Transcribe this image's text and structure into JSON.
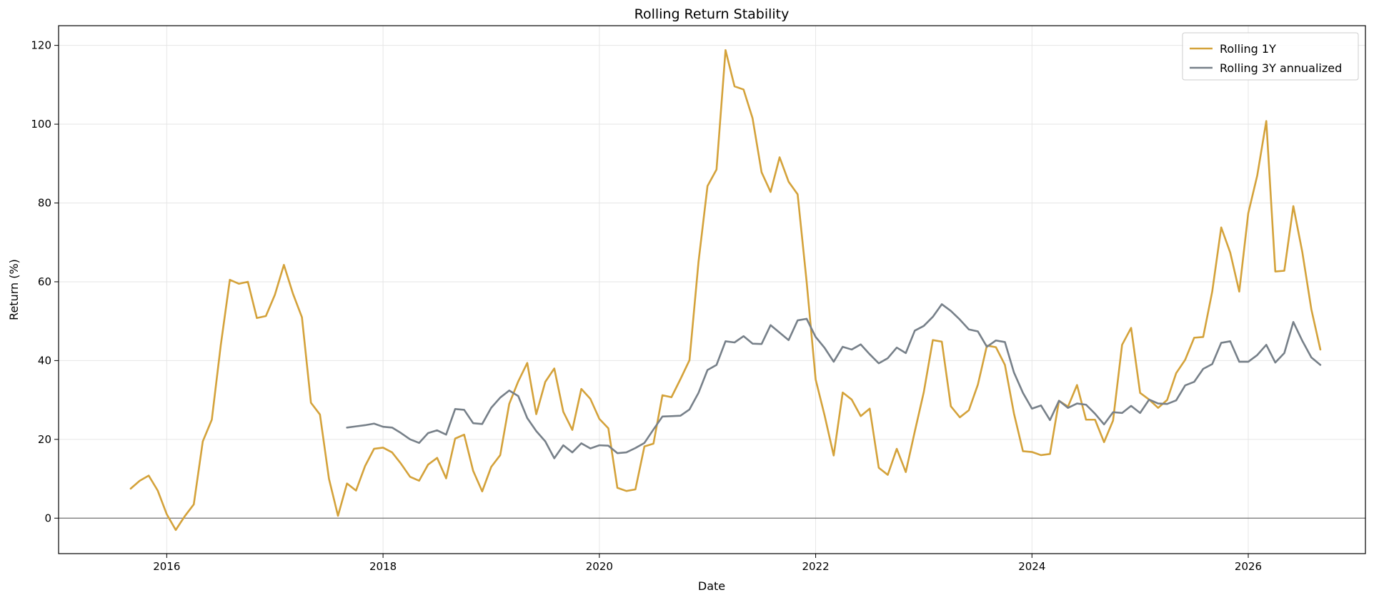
{
  "chart_data": {
    "type": "line",
    "title": "Rolling Return Stability",
    "xlabel": "Date",
    "ylabel": "Return (%)",
    "xlim": [
      "2015-01",
      "2027-02"
    ],
    "ylim": [
      -9,
      125
    ],
    "xticks": [
      "2016",
      "2018",
      "2020",
      "2022",
      "2024",
      "2026"
    ],
    "yticks": [
      0,
      20,
      40,
      60,
      80,
      100,
      120
    ],
    "grid": true,
    "reference_line_y": 0,
    "legend_position": "top-right",
    "series": [
      {
        "name": "Rolling 1Y",
        "color": "#d4a23a",
        "start": "2015-09",
        "values": [
          7.5,
          9.5,
          10.8,
          7.0,
          1.0,
          -3.0,
          0.5,
          3.5,
          19.5,
          25.0,
          44.0,
          60.5,
          59.5,
          60.0,
          50.8,
          51.3,
          56.7,
          64.3,
          57.0,
          51.0,
          29.3,
          26.3,
          10.0,
          0.6,
          8.8,
          7.0,
          13.2,
          17.6,
          17.9,
          16.7,
          13.8,
          10.5,
          9.5,
          13.6,
          15.3,
          10.1,
          20.2,
          21.2,
          12.0,
          6.8,
          13.0,
          16.0,
          29.0,
          34.7,
          39.4,
          26.4,
          34.6,
          38.0,
          27.0,
          22.4,
          32.8,
          30.3,
          25.2,
          22.8,
          7.7,
          6.9,
          7.3,
          18.2,
          18.9,
          31.2,
          30.7,
          35.3,
          40.1,
          65.0,
          84.3,
          88.5,
          118.8,
          109.6,
          108.8,
          101.5,
          87.8,
          82.8,
          91.6,
          85.4,
          82.2,
          60.0,
          35.2,
          26.0,
          15.9,
          31.9,
          30.1,
          25.9,
          27.8,
          12.8,
          11.0,
          17.6,
          11.7,
          22.0,
          32.0,
          45.2,
          44.8,
          28.4,
          25.6,
          27.4,
          33.9,
          43.8,
          43.4,
          38.9,
          26.6,
          17.0,
          16.8,
          16.0,
          16.3,
          29.8,
          28.3,
          33.8,
          25.0,
          25.0,
          19.3,
          24.8,
          44.0,
          48.3,
          31.8,
          30.1,
          28.0,
          30.0,
          36.8,
          40.2,
          45.8,
          46.0,
          57.5,
          73.8,
          67.4,
          57.5,
          77.4,
          87.0,
          100.8,
          62.6,
          62.8,
          79.2,
          67.5,
          53.0,
          42.8
        ]
      },
      {
        "name": "Rolling 3Y annualized",
        "color": "#778089",
        "start": "2017-09",
        "values": [
          23.0,
          23.3,
          23.6,
          24.0,
          23.2,
          23.0,
          21.6,
          20.0,
          19.1,
          21.6,
          22.3,
          21.2,
          27.7,
          27.5,
          24.1,
          23.9,
          28.0,
          30.6,
          32.4,
          31.0,
          25.4,
          22.1,
          19.5,
          15.2,
          18.5,
          16.7,
          19.0,
          17.7,
          18.5,
          18.4,
          16.5,
          16.7,
          17.8,
          19.1,
          22.5,
          25.8,
          25.9,
          26.0,
          27.6,
          31.8,
          37.6,
          38.9,
          44.9,
          44.6,
          46.2,
          44.3,
          44.2,
          49.0,
          47.1,
          45.2,
          50.2,
          50.6,
          46.0,
          43.2,
          39.7,
          43.5,
          42.8,
          44.1,
          41.6,
          39.3,
          40.6,
          43.3,
          41.9,
          47.6,
          48.8,
          51.1,
          54.3,
          52.6,
          50.4,
          47.9,
          47.4,
          43.5,
          45.1,
          44.7,
          37.0,
          31.8,
          27.8,
          28.6,
          24.9,
          29.8,
          28.0,
          29.1,
          28.8,
          26.5,
          23.8,
          26.9,
          26.7,
          28.5,
          26.7,
          30.1,
          29.1,
          29.0,
          29.9,
          33.7,
          34.6,
          37.9,
          39.1,
          44.5,
          44.9,
          39.7,
          39.7,
          41.4,
          44.0,
          39.5,
          41.9,
          49.8,
          45.0,
          40.8,
          38.9
        ]
      }
    ]
  }
}
